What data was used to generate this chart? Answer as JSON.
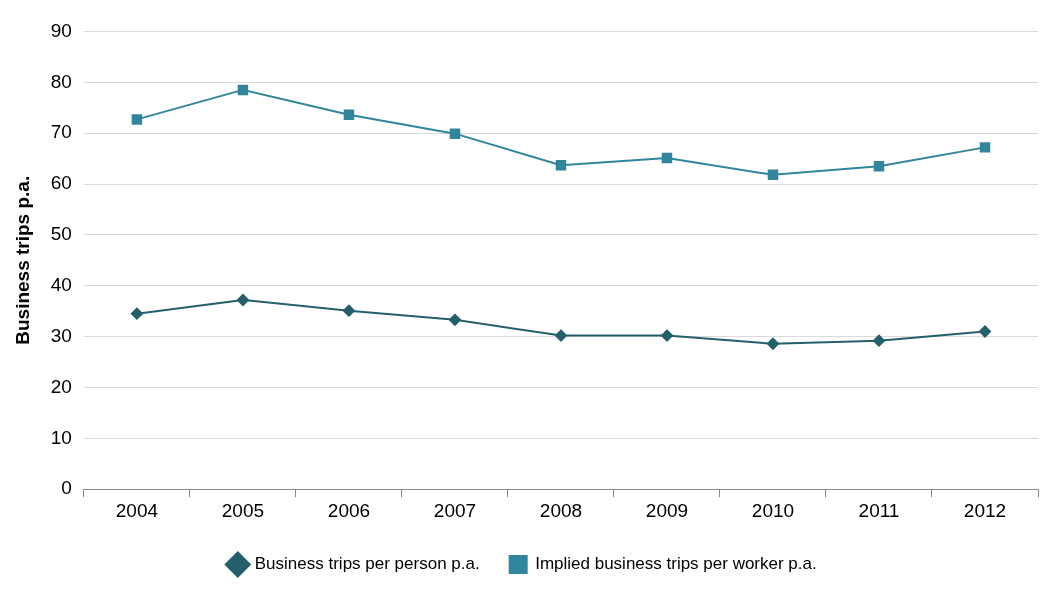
{
  "chart_data": {
    "type": "line",
    "ylabel": "Business trips p.a.",
    "categories": [
      "2004",
      "2005",
      "2006",
      "2007",
      "2008",
      "2009",
      "2010",
      "2011",
      "2012"
    ],
    "series": [
      {
        "name": "Business trips per person p.a.",
        "color": "#245f6c",
        "marker": "diamond",
        "values": [
          34.5,
          37.2,
          35.1,
          33.3,
          30.2,
          30.2,
          28.6,
          29.2,
          31.0
        ]
      },
      {
        "name": "Implied business trips per worker p.a.",
        "color": "#31859c",
        "marker": "square",
        "values": [
          72.7,
          78.5,
          73.6,
          69.9,
          63.7,
          65.1,
          61.8,
          63.5,
          67.2
        ]
      }
    ],
    "ylim": [
      0,
      90
    ],
    "yticks": [
      0,
      10,
      20,
      30,
      40,
      50,
      60,
      70,
      80,
      90
    ],
    "grid": "y",
    "legend": "bottom",
    "line_style": "solid"
  }
}
